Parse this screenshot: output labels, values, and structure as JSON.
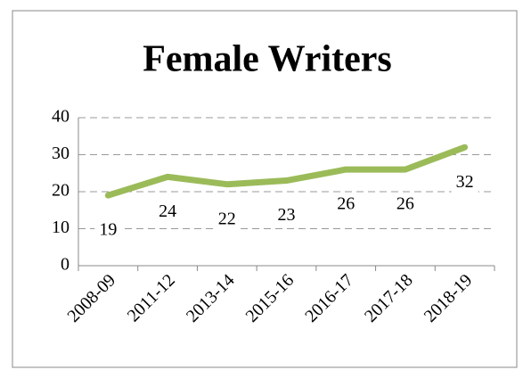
{
  "chart_data": {
    "type": "line",
    "title": "Female Writers",
    "categories": [
      "2008-09",
      "2011-12",
      "2013-14",
      "2015-16",
      "2016-17",
      "2017-18",
      "2018-19"
    ],
    "values": [
      19,
      24,
      22,
      23,
      26,
      26,
      32
    ],
    "color": "#9bbb59",
    "ylim": [
      0,
      40
    ],
    "yticks": [
      0,
      10,
      20,
      30,
      40
    ],
    "grid": true
  }
}
